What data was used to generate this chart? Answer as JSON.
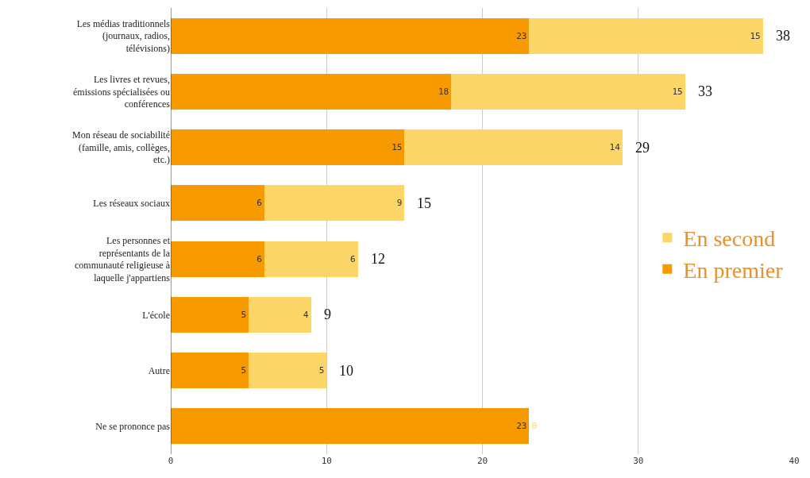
{
  "chart_data": {
    "type": "bar",
    "orientation": "horizontal",
    "stacked": true,
    "categories": [
      "Les médias traditionnels (journaux, radios, télévisions)",
      "Les livres et revues, émissions spécialisées ou conférences",
      "Mon réseau de sociabilité (famille, amis, collèges, etc.)",
      "Les réseaux sociaux",
      "Les personnes et représentants de la communauté religieuse à laquelle j'appartiens",
      "L'école",
      "Autre",
      "Ne se prononce pas"
    ],
    "series": [
      {
        "name": "En premier",
        "color": "#f79a00",
        "values": [
          23,
          18,
          15,
          6,
          6,
          5,
          5,
          23
        ]
      },
      {
        "name": "En second",
        "color": "#fcd666",
        "values": [
          15,
          15,
          14,
          9,
          6,
          4,
          5,
          0
        ]
      }
    ],
    "data_labels": true,
    "totals": [
      "38",
      "33",
      "29",
      "15",
      "12",
      "9",
      "10",
      null
    ],
    "xlim": [
      0,
      40
    ],
    "xticks": [
      0,
      10,
      20,
      30,
      40
    ],
    "grid": "x",
    "legend": "right"
  }
}
